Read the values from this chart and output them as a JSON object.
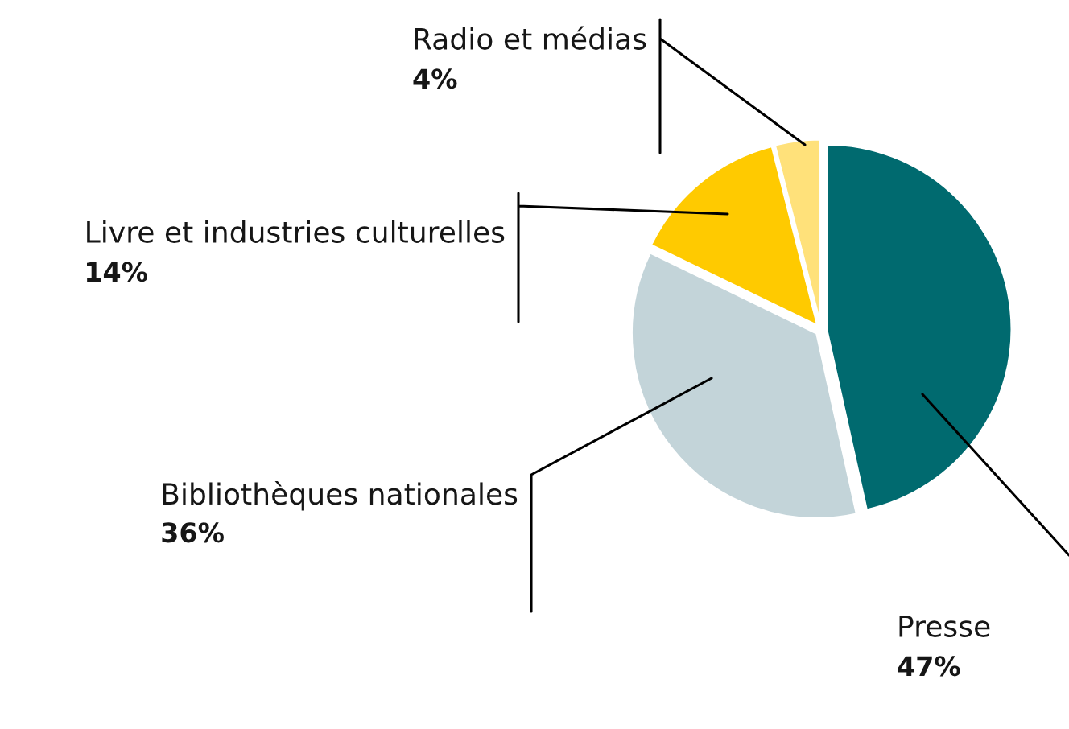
{
  "chart_data": {
    "type": "pie",
    "categories": [
      "Presse",
      "Bibliothèques nationales",
      "Livre et industries culturelles",
      "Radio et médias"
    ],
    "values": [
      47,
      36,
      14,
      4
    ],
    "value_labels": [
      "47%",
      "36%",
      "14%",
      "4%"
    ],
    "colors": [
      "#006a6f",
      "#c3d4d9",
      "#ffca00",
      "#ffe17a"
    ],
    "legend": false
  }
}
